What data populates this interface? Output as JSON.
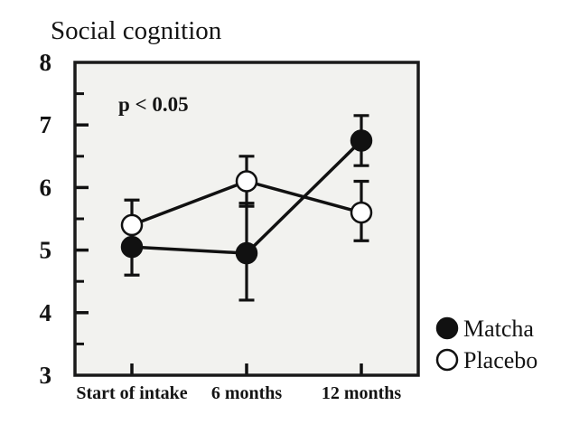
{
  "chart_data": {
    "type": "line",
    "title": "Social cognition",
    "annotation": "p < 0.05",
    "categories": [
      "Start of intake",
      "6 months",
      "12 months"
    ],
    "xlabel": "",
    "ylabel": "",
    "ylim": [
      3,
      8
    ],
    "yticks": [
      8,
      7,
      6,
      5,
      4,
      3
    ],
    "minor_yticks": [
      3.5,
      4.5,
      5.5,
      6.5,
      7.5
    ],
    "grid": "off",
    "legend_position": "bottom-right",
    "colors": {
      "ink": "#111111",
      "plot_bg": "#f2f2ef",
      "page_bg": "#ffffff"
    },
    "series": [
      {
        "name": "Matcha",
        "marker": "filled-circle",
        "values": [
          5.05,
          4.95,
          6.75
        ],
        "err_low": [
          0.45,
          0.75,
          0.4
        ],
        "err_high": [
          0.45,
          0.8,
          0.4
        ]
      },
      {
        "name": "Placebo",
        "marker": "open-circle",
        "values": [
          5.4,
          6.1,
          5.6
        ],
        "err_low": [
          0.4,
          0.4,
          0.45
        ],
        "err_high": [
          0.4,
          0.4,
          0.5
        ]
      }
    ]
  }
}
